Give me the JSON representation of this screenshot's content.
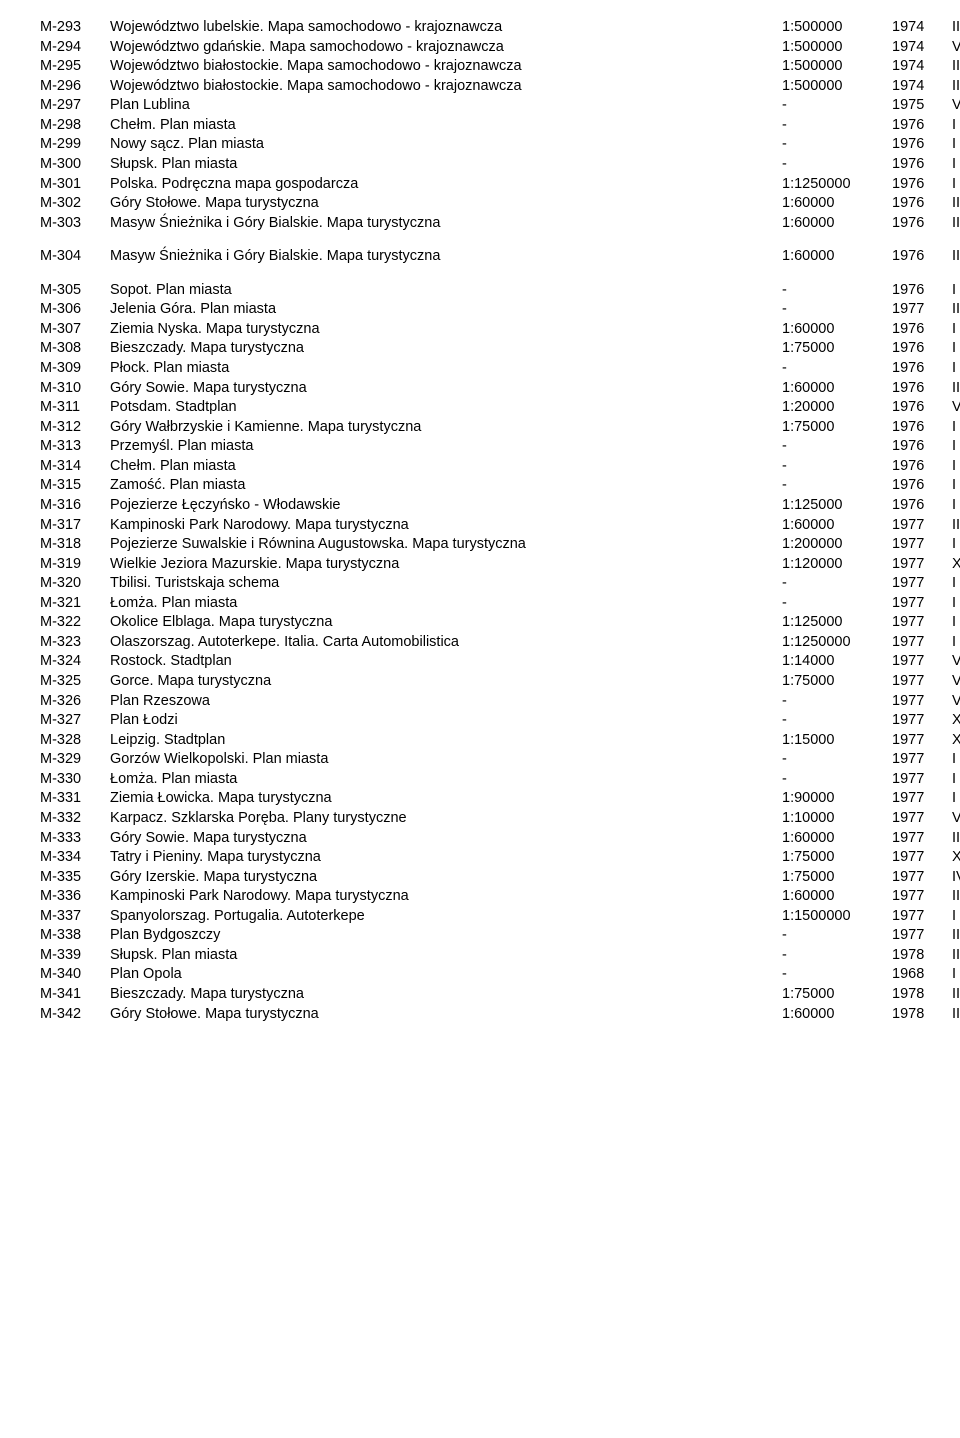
{
  "groups": [
    [
      {
        "id": "M-293",
        "title": "Województwo lubelskie. Mapa samochodowo - krajoznawcza",
        "scale": "1:500000",
        "year": "1974",
        "note": "III"
      },
      {
        "id": "M-294",
        "title": "Województwo gdańskie. Mapa samochodowo - krajoznawcza",
        "scale": "1:500000",
        "year": "1974",
        "note": "V"
      },
      {
        "id": "M-295",
        "title": "Województwo białostockie. Mapa samochodowo - krajoznawcza",
        "scale": "1:500000",
        "year": "1974",
        "note": "III"
      },
      {
        "id": "M-296",
        "title": "Województwo białostockie. Mapa samochodowo - krajoznawcza",
        "scale": "1:500000",
        "year": "1974",
        "note": "III"
      },
      {
        "id": "M-297",
        "title": "Plan Lublina",
        "scale": "-",
        "year": "1975",
        "note": "VIII"
      },
      {
        "id": "M-298",
        "title": "Chełm. Plan miasta",
        "scale": "-",
        "year": "1976",
        "note": "I"
      },
      {
        "id": "M-299",
        "title": "Nowy sącz. Plan miasta",
        "scale": "-",
        "year": "1976",
        "note": "I"
      },
      {
        "id": "M-300",
        "title": "Słupsk. Plan miasta",
        "scale": "-",
        "year": "1976",
        "note": "I"
      },
      {
        "id": "M-301",
        "title": "Polska. Podręczna mapa gospodarcza",
        "scale": "1:1250000",
        "year": "1976",
        "note": "I"
      },
      {
        "id": "M-302",
        "title": "Góry Stołowe. Mapa turystyczna",
        "scale": "1:60000",
        "year": "1976",
        "note": "II"
      },
      {
        "id": "M-303",
        "title": "Masyw Śnieżnika i Góry Bialskie. Mapa turystyczna",
        "scale": "1:60000",
        "year": "1976",
        "note": "II"
      }
    ],
    [
      {
        "id": "M-304",
        "title": "Masyw Śnieżnika i Góry Bialskie. Mapa turystyczna",
        "scale": "1:60000",
        "year": "1976",
        "note": "II"
      }
    ],
    [
      {
        "id": "M-305",
        "title": "Sopot. Plan miasta",
        "scale": "-",
        "year": "1976",
        "note": "I"
      },
      {
        "id": "M-306",
        "title": "Jelenia Góra. Plan miasta",
        "scale": "-",
        "year": "1977",
        "note": "II"
      },
      {
        "id": "M-307",
        "title": "Ziemia Nyska. Mapa turystyczna",
        "scale": "1:60000",
        "year": "1976",
        "note": "I"
      },
      {
        "id": "M-308",
        "title": "Bieszczady. Mapa turystyczna",
        "scale": "1:75000",
        "year": "1976",
        "note": "I"
      },
      {
        "id": "M-309",
        "title": "Płock. Plan miasta",
        "scale": "-",
        "year": "1976",
        "note": "I"
      },
      {
        "id": "M-310",
        "title": "Góry Sowie. Mapa turystyczna",
        "scale": "1:60000",
        "year": "1976",
        "note": "II"
      },
      {
        "id": "M-311",
        "title": "Potsdam. Stadtplan",
        "scale": "1:20000",
        "year": "1976",
        "note": "VII"
      },
      {
        "id": "M-312",
        "title": "Góry Wałbrzyskie i Kamienne. Mapa turystyczna",
        "scale": "1:75000",
        "year": "1976",
        "note": "I"
      },
      {
        "id": "M-313",
        "title": "Przemyśl. Plan miasta",
        "scale": "-",
        "year": "1976",
        "note": "I"
      },
      {
        "id": "M-314",
        "title": "Chełm. Plan miasta",
        "scale": "-",
        "year": "1976",
        "note": "I"
      },
      {
        "id": "M-315",
        "title": "Zamość. Plan miasta",
        "scale": "-",
        "year": "1976",
        "note": "I"
      },
      {
        "id": "M-316",
        "title": "Pojezierze Łęczyńsko - Włodawskie",
        "scale": "1:125000",
        "year": "1976",
        "note": "I"
      },
      {
        "id": "M-317",
        "title": "Kampinoski Park Narodowy. Mapa turystyczna",
        "scale": "1:60000",
        "year": "1977",
        "note": "II"
      },
      {
        "id": "M-318",
        "title": "Pojezierze Suwalskie i Równina Augustowska. Mapa turystyczna",
        "scale": "1:200000",
        "year": "1977",
        "note": "I"
      },
      {
        "id": "M-319",
        "title": "Wielkie Jeziora Mazurskie. Mapa turystyczna",
        "scale": "1:120000",
        "year": "1977",
        "note": "XIII"
      },
      {
        "id": "M-320",
        "title": "Tbilisi. Turistskaja schema",
        "scale": "-",
        "year": "1977",
        "note": "I"
      },
      {
        "id": "M-321",
        "title": "Łomża. Plan miasta",
        "scale": "-",
        "year": "1977",
        "note": "I"
      },
      {
        "id": "M-322",
        "title": "Okolice Elblaga. Mapa turystyczna",
        "scale": "1:125000",
        "year": "1977",
        "note": "I"
      },
      {
        "id": "M-323",
        "title": "Olaszorszag. Autoterkepe. Italia. Carta Automobilistica",
        "scale": "1:1250000",
        "year": "1977",
        "note": "I"
      },
      {
        "id": "M-324",
        "title": "Rostock. Stadtplan",
        "scale": "1:14000",
        "year": "1977",
        "note": "VIII"
      },
      {
        "id": "M-325",
        "title": "Gorce. Mapa turystyczna",
        "scale": "1:75000",
        "year": "1977",
        "note": "VI"
      },
      {
        "id": "M-326",
        "title": "Plan Rzeszowa",
        "scale": "-",
        "year": "1977",
        "note": "V"
      },
      {
        "id": "M-327",
        "title": "Plan Łodzi",
        "scale": "-",
        "year": "1977",
        "note": "XI"
      },
      {
        "id": "M-328",
        "title": "Leipzig. Stadtplan",
        "scale": "1:15000",
        "year": "1977",
        "note": "XII"
      },
      {
        "id": "M-329",
        "title": "Gorzów Wielkopolski. Plan miasta",
        "scale": "-",
        "year": "1977",
        "note": "I"
      },
      {
        "id": "M-330",
        "title": "Łomża. Plan miasta",
        "scale": "-",
        "year": "1977",
        "note": "I"
      },
      {
        "id": "M-331",
        "title": "Ziemia Łowicka. Mapa turystyczna",
        "scale": "1:90000",
        "year": "1977",
        "note": "I"
      },
      {
        "id": "M-332",
        "title": "Karpacz. Szklarska Poręba. Plany turystyczne",
        "scale": "1:10000",
        "year": "1977",
        "note": "VI"
      },
      {
        "id": "M-333",
        "title": "Góry Sowie. Mapa turystyczna",
        "scale": "1:60000",
        "year": "1977",
        "note": "III"
      },
      {
        "id": "M-334",
        "title": "Tatry i Pieniny. Mapa turystyczna",
        "scale": "1:75000",
        "year": "1977",
        "note": "XIV"
      },
      {
        "id": "M-335",
        "title": "Góry Izerskie. Mapa turystyczna",
        "scale": "1:75000",
        "year": "1977",
        "note": "IV"
      },
      {
        "id": "M-336",
        "title": "Kampinoski Park Narodowy. Mapa turystyczna",
        "scale": "1:60000",
        "year": "1977",
        "note": "II"
      },
      {
        "id": "M-337",
        "title": "Spanyolorszag. Portugalia. Autoterkepe",
        "scale": "1:1500000",
        "year": "1977",
        "note": "I"
      },
      {
        "id": "M-338",
        "title": "Plan Bydgoszczy",
        "scale": "-",
        "year": "1977",
        "note": "II"
      },
      {
        "id": "M-339",
        "title": "Słupsk. Plan miasta",
        "scale": "-",
        "year": "1978",
        "note": "II"
      },
      {
        "id": "M-340",
        "title": "Plan Opola",
        "scale": "-",
        "year": "1968",
        "note": "I"
      },
      {
        "id": "M-341",
        "title": "Bieszczady. Mapa turystyczna",
        "scale": "1:75000",
        "year": "1978",
        "note": "III"
      },
      {
        "id": "M-342",
        "title": "Góry Stołowe. Mapa turystyczna",
        "scale": "1:60000",
        "year": "1978",
        "note": "III"
      }
    ]
  ]
}
